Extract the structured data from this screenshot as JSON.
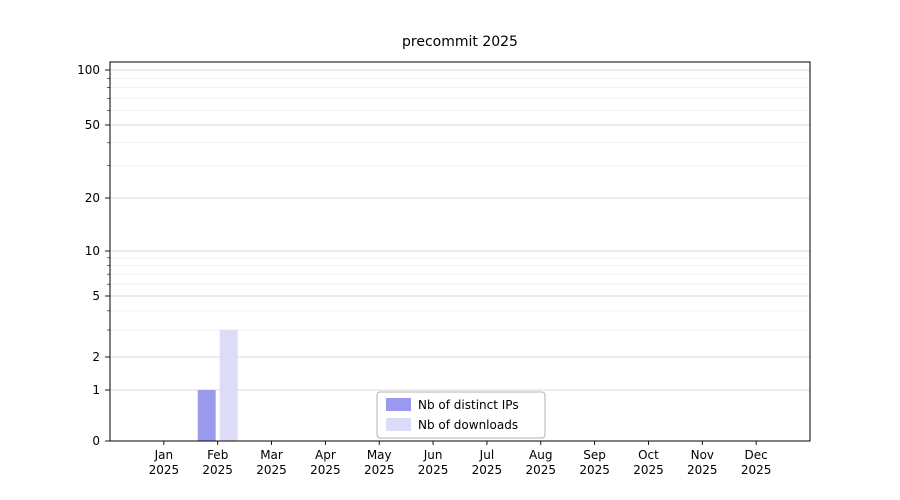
{
  "chart_data": {
    "type": "bar",
    "title": "precommit 2025",
    "categories": [
      "Jan 2025",
      "Feb 2025",
      "Mar 2025",
      "Apr 2025",
      "May 2025",
      "Jun 2025",
      "Jul 2025",
      "Aug 2025",
      "Sep 2025",
      "Oct 2025",
      "Nov 2025",
      "Dec 2025"
    ],
    "series": [
      {
        "name": "Nb of distinct IPs",
        "color": "#9999ee",
        "values": [
          0,
          1,
          0,
          0,
          0,
          0,
          0,
          0,
          0,
          0,
          0,
          0
        ]
      },
      {
        "name": "Nb of downloads",
        "color": "#dcdcf8",
        "values": [
          0,
          3,
          0,
          0,
          0,
          0,
          0,
          0,
          0,
          0,
          0,
          0
        ]
      }
    ],
    "yscale": "symlog",
    "yticks": [
      0,
      1,
      2,
      5,
      10,
      20,
      50,
      100
    ],
    "minor_yticks": [
      3,
      4,
      6,
      7,
      8,
      9,
      30,
      40,
      60,
      70,
      80,
      90
    ],
    "ylim": [
      0,
      110
    ],
    "grid": true,
    "legend_position": "lower center",
    "colors": {
      "major_grid": "#d9d9d9",
      "minor_grid": "#ededed",
      "spine": "#000000",
      "legend_border": "#b0b0b0",
      "text": "#000000"
    }
  }
}
